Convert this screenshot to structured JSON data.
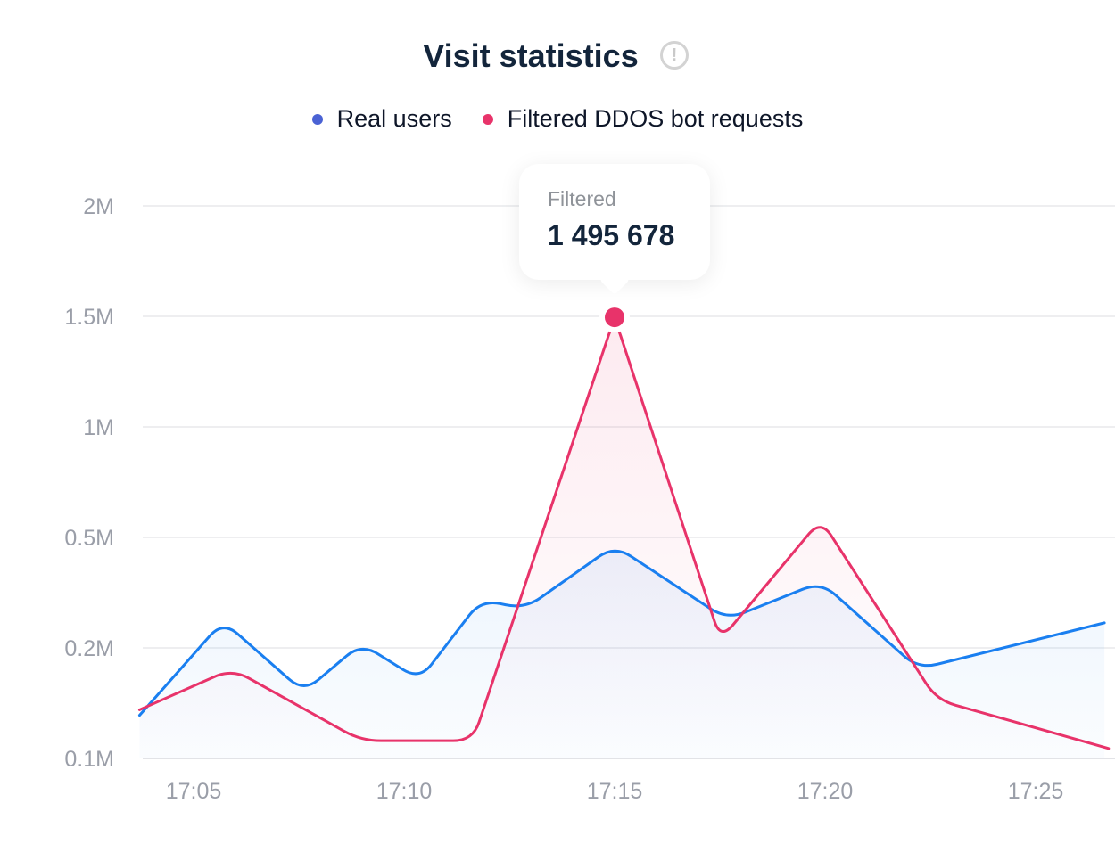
{
  "title": "Visit statistics",
  "info_icon": "exclamation-circle-icon",
  "chart_data": {
    "type": "line",
    "title": "Visit statistics",
    "y_ticks": [
      "0.1M",
      "0.2M",
      "0.5M",
      "1M",
      "1.5M",
      "2M"
    ],
    "y_tick_values": [
      100000,
      200000,
      500000,
      1000000,
      1500000,
      2000000
    ],
    "y_scale": "non-linear (equally spaced tick levels)",
    "x_ticks": [
      "17:05",
      "17:10",
      "17:15",
      "17:20",
      "17:25"
    ],
    "xlim": [
      "17:03:43",
      "17:26:55"
    ],
    "grid": "horizontal",
    "legend_position": "top",
    "series": [
      {
        "name": "Real users",
        "color": "#1a7ff0",
        "legend_color": "#4a62d4",
        "x": [
          "17:03:43",
          "17:05:42",
          "17:07:37",
          "17:08:59",
          "17:10:22",
          "17:11:50",
          "17:12:52",
          "17:15:00",
          "17:17:40",
          "17:19:54",
          "17:22:13",
          "17:26:38"
        ],
        "y": [
          139000,
          273000,
          160000,
          212000,
          171000,
          331000,
          306000,
          478000,
          277000,
          379000,
          181000,
          268000
        ]
      },
      {
        "name": "Filtered DDOS bot requests",
        "color": "#e8336a",
        "legend_color": "#e8336a",
        "x": [
          "17:03:43",
          "17:05:55",
          "17:08:59",
          "17:11:38",
          "17:15:00",
          "17:17:31",
          "17:19:54",
          "17:22:39",
          "17:26:44"
        ],
        "y": [
          144000,
          181000,
          116000,
          116000,
          1495678,
          222000,
          581000,
          153000,
          109000
        ]
      }
    ],
    "tooltip": {
      "label": "Filtered",
      "value": "1 495 678",
      "series": "Filtered DDOS bot requests",
      "x": "17:15:00"
    }
  }
}
